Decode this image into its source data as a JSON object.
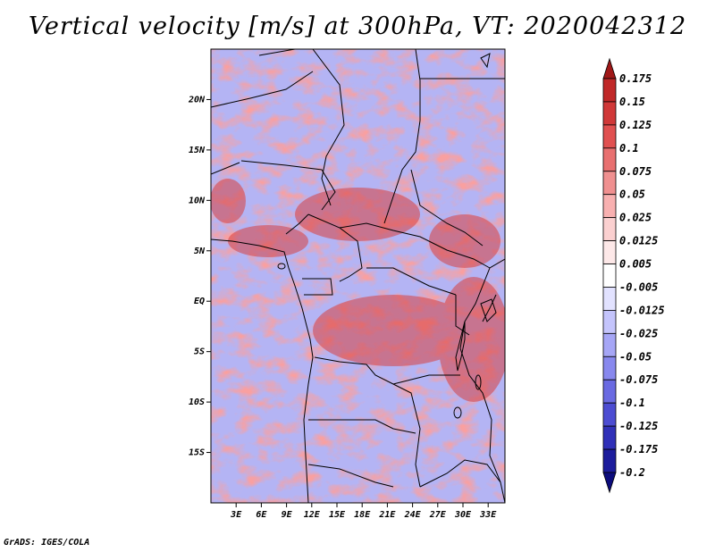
{
  "title": "Vertical velocity [m/s] at 300hPa, VT: 2020042312",
  "credit": "GrADS: IGES/COLA",
  "map": {
    "region": "Central Africa",
    "lon_range": [
      0,
      35
    ],
    "lat_range": [
      -20,
      25
    ],
    "lon_ticks": [
      "3E",
      "6E",
      "9E",
      "12E",
      "15E",
      "18E",
      "21E",
      "24E",
      "27E",
      "30E",
      "33E"
    ],
    "lon_tick_values": [
      3,
      6,
      9,
      12,
      15,
      18,
      21,
      24,
      27,
      30,
      33
    ],
    "lat_ticks": [
      "20N",
      "15N",
      "10N",
      "5N",
      "EQ",
      "5S",
      "10S",
      "15S"
    ],
    "lat_tick_values": [
      20,
      15,
      10,
      5,
      0,
      -5,
      -10,
      -15
    ]
  },
  "colorbar": {
    "labels": [
      "0.175",
      "0.15",
      "0.125",
      "0.1",
      "0.075",
      "0.05",
      "0.025",
      "0.0125",
      "0.005",
      "-0.005",
      "-0.0125",
      "-0.025",
      "-0.05",
      "-0.075",
      "-0.1",
      "-0.125",
      "-0.175",
      "-0.2"
    ],
    "colors": [
      "#a01818",
      "#c02828",
      "#d03838",
      "#e05050",
      "#e87070",
      "#f09090",
      "#f8b0b0",
      "#fbd0d0",
      "#fde8e8",
      "#ffffff",
      "#e2e2ff",
      "#c4c4fc",
      "#a6a6f6",
      "#8888ee",
      "#6a6ae2",
      "#4c4cd2",
      "#3030b8",
      "#1c1c9c",
      "#0c0c7c"
    ]
  }
}
